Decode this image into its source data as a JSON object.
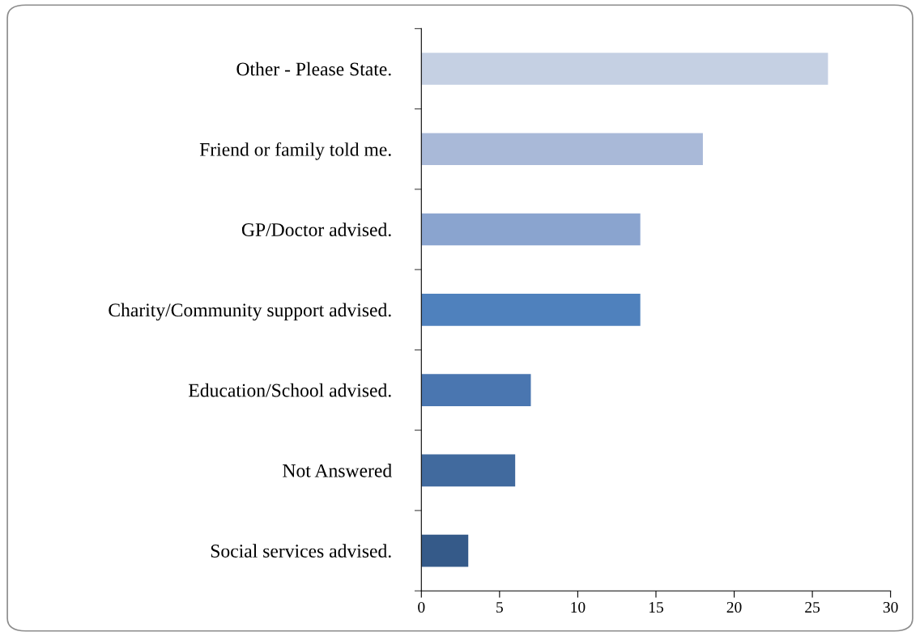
{
  "chart_data": {
    "type": "bar",
    "orientation": "horizontal",
    "categories": [
      "Other - Please State.",
      "Friend or family told me.",
      "GP/Doctor advised.",
      "Charity/Community support advised.",
      "Education/School advised.",
      "Not Answered",
      "Social services advised."
    ],
    "values": [
      26,
      18,
      14,
      14,
      7,
      6,
      3
    ],
    "colors": [
      "#c5d0e3",
      "#a9b9d8",
      "#8aa4cf",
      "#4f81bd",
      "#4a76b0",
      "#416a9e",
      "#355a89"
    ],
    "xlim": [
      0,
      30
    ],
    "xticks": [
      0,
      5,
      10,
      15,
      20,
      25,
      30
    ],
    "grid": false,
    "legend": false
  }
}
